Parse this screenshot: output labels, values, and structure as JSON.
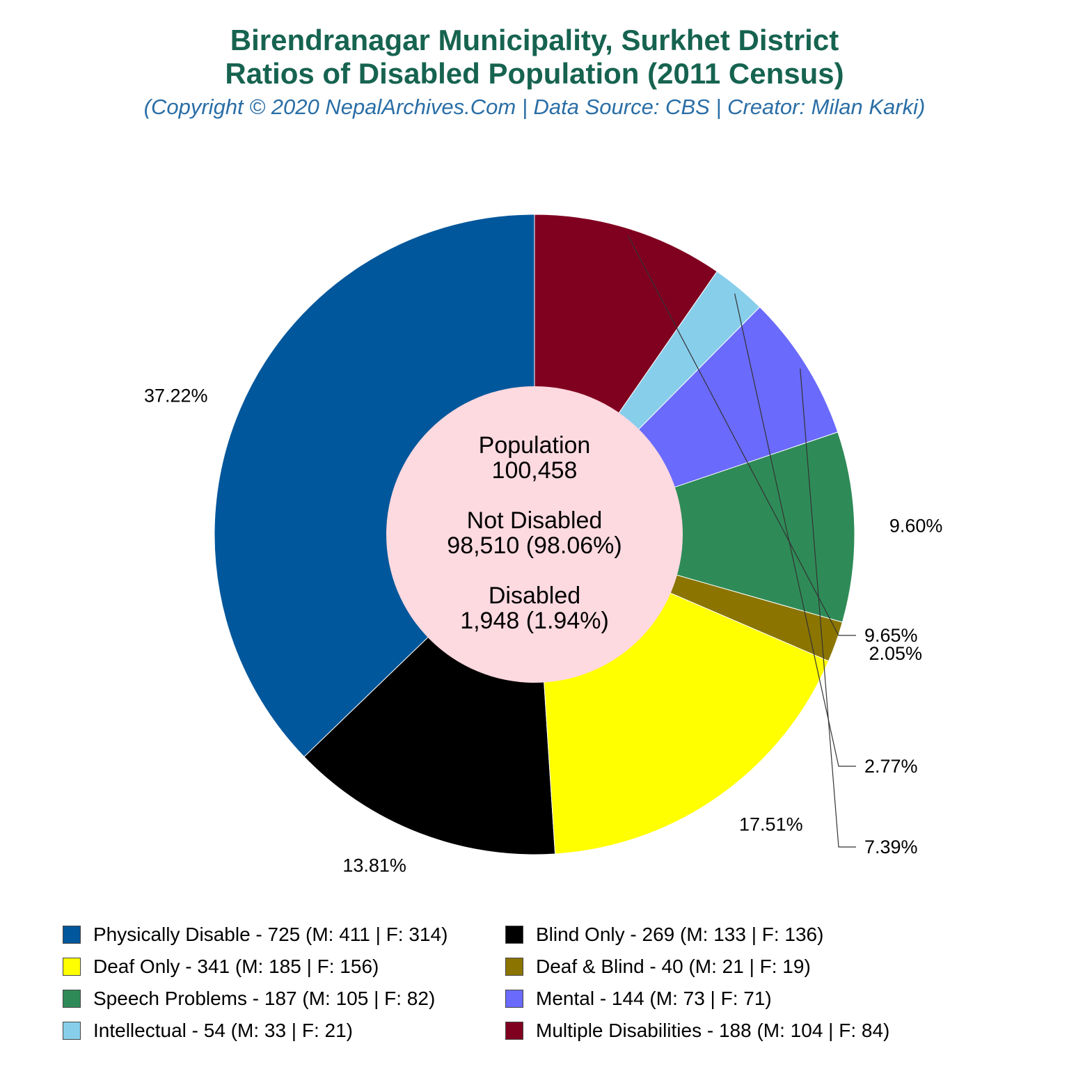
{
  "title_line1": "Birendranagar Municipality, Surkhet District",
  "title_line2": "Ratios of Disabled Population (2011 Census)",
  "subtitle": "(Copyright © 2020 NepalArchives.Com | Data Source: CBS | Creator: Milan Karki)",
  "center": {
    "population_label": "Population",
    "population_value": "100,458",
    "not_disabled_label": "Not Disabled",
    "not_disabled_value": "98,510 (98.06%)",
    "disabled_label": "Disabled",
    "disabled_value": "1,948 (1.94%)",
    "color": "#fdd9e0"
  },
  "chart_data": {
    "type": "pie",
    "start_angle_deg": 90,
    "direction": "counterclockwise",
    "slices": [
      {
        "label": "Physically Disable - 725 (M: 411 | F: 314)",
        "value": 725,
        "percent_label": "37.22%",
        "color": "#01579b"
      },
      {
        "label": "Blind Only - 269 (M: 133 | F: 136)",
        "value": 269,
        "percent_label": "13.81%",
        "color": "#000000"
      },
      {
        "label": "Deaf Only - 341 (M: 185 | F: 156)",
        "value": 341,
        "percent_label": "17.51%",
        "color": "#ffff00"
      },
      {
        "label": "Deaf & Blind - 40 (M: 21 | F: 19)",
        "value": 40,
        "percent_label": "2.05%",
        "color": "#8b7500"
      },
      {
        "label": "Speech Problems - 187 (M: 105 | F: 82)",
        "value": 187,
        "percent_label": "9.60%",
        "color": "#2e8b57"
      },
      {
        "label": "Mental - 144 (M: 73 | F: 71)",
        "value": 144,
        "percent_label": "7.39%",
        "color": "#6a6afc"
      },
      {
        "label": "Intellectual - 54 (M: 33 | F: 21)",
        "value": 54,
        "percent_label": "2.77%",
        "color": "#87ceeb"
      },
      {
        "label": "Multiple Disabilities - 188 (M: 104 | F: 84)",
        "value": 188,
        "percent_label": "9.65%",
        "color": "#800020"
      }
    ],
    "legend_order": [
      0,
      1,
      2,
      3,
      4,
      5,
      6,
      7
    ],
    "legend_placement": "bottom"
  }
}
